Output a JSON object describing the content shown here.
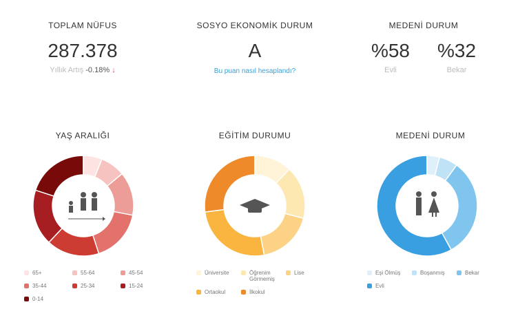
{
  "total": {
    "title": "TOPLAM NÜFUS",
    "value": "287.378",
    "growth_label": "Yıllık Artış",
    "growth_value": "-0.18%",
    "arrow": "↓"
  },
  "socio": {
    "title": "SOSYO EKONOMİK DURUM",
    "value": "A",
    "link": "Bu puan nasıl hesaplandı?"
  },
  "marital_top": {
    "title": "MEDENİ DURUM",
    "items": [
      {
        "value": "%58",
        "label": "Evli"
      },
      {
        "value": "%32",
        "label": "Bekar"
      }
    ]
  },
  "chart_data": [
    {
      "type": "pie",
      "title": "YAŞ ARALIĞI",
      "categories": [
        "65+",
        "55-64",
        "45-54",
        "35-44",
        "25-34",
        "15-24",
        "0-14"
      ],
      "values": [
        6,
        8,
        14,
        17,
        17,
        18,
        20
      ],
      "colors": [
        "#fde4e3",
        "#f7c3c0",
        "#ec9d97",
        "#e3716c",
        "#cc3c32",
        "#a61d22",
        "#780a0a"
      ]
    },
    {
      "type": "pie",
      "title": "EĞİTİM DURUMU",
      "categories": [
        "Üniversite",
        "Öğrenim Görmemiş",
        "Lise",
        "Ortaokul",
        "İlkokul"
      ],
      "values": [
        12,
        17,
        18,
        26,
        27
      ],
      "colors": [
        "#fff3d8",
        "#fde8b2",
        "#fcd386",
        "#f9b540",
        "#ee8a2a"
      ]
    },
    {
      "type": "pie",
      "title": "MEDENİ DURUM",
      "categories": [
        "Eşi Ölmüş",
        "Boşanmış",
        "Bekar",
        "Evli"
      ],
      "values": [
        4,
        6,
        32,
        58
      ],
      "colors": [
        "#e0f0fb",
        "#bfe2f7",
        "#80c5ee",
        "#3a9fe0"
      ]
    }
  ]
}
